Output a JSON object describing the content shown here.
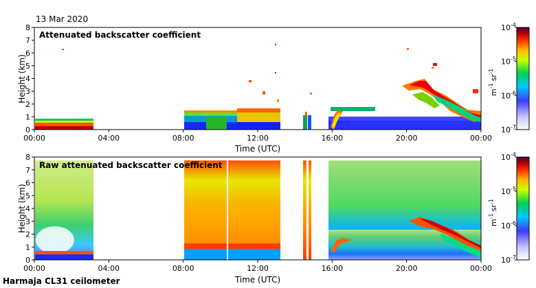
{
  "header": {
    "date": "13 Mar 2020",
    "instrument": "Harmaja CL31 ceilometer"
  },
  "chart_data": [
    {
      "type": "heatmap",
      "title": "Attenuated backscatter coefficient",
      "xlabel": "Time (UTC)",
      "ylabel": "Height (km)",
      "x_ticks": [
        "00:00",
        "04:00",
        "08:00",
        "12:00",
        "16:00",
        "20:00",
        "00:00"
      ],
      "y_ticks": [
        "0",
        "1",
        "2",
        "3",
        "4",
        "5",
        "6",
        "7",
        "8"
      ],
      "xlim_hours": [
        0,
        24
      ],
      "ylim_km": [
        0,
        8
      ],
      "data_segments_hours": [
        [
          0.0,
          3.2
        ],
        [
          8.1,
          13.2
        ],
        [
          14.4,
          14.7
        ],
        [
          14.8,
          15.05
        ],
        [
          15.95,
          24.0
        ]
      ],
      "features": [
        {
          "hours": [
            0.0,
            3.2
          ],
          "cloud_base_km": 0.5,
          "intensity": "high"
        },
        {
          "hours": [
            8.1,
            13.2
          ],
          "cloud_base_km": 0.9,
          "intensity": "high"
        },
        {
          "hours": [
            16.0,
            19.0
          ],
          "cloud_base_km": 1.5,
          "intensity": "medium"
        },
        {
          "hours": [
            20.0,
            24.0
          ],
          "cloud_base_km": 1.2,
          "note": "cloud layer descending from 3.5 km to 1.2 km"
        }
      ],
      "colorbar": {
        "scale": "log",
        "min": 1e-07,
        "max": 0.0001,
        "ticks": [
          {
            "base": "10",
            "exp": "-4"
          },
          {
            "base": "10",
            "exp": "-5"
          },
          {
            "base": "10",
            "exp": "-6"
          },
          {
            "base": "10",
            "exp": "-7"
          }
        ],
        "label": {
          "m": "m",
          "m_exp": "-1",
          "sr": "sr",
          "sr_exp": "-1"
        }
      }
    },
    {
      "type": "heatmap",
      "title": "Raw attenuated backscatter coefficient",
      "xlabel": "Time (UTC)",
      "ylabel": "Height (km)",
      "x_ticks": [
        "00:00",
        "04:00",
        "08:00",
        "12:00",
        "16:00",
        "20:00",
        "00:00"
      ],
      "y_ticks": [
        "0",
        "1",
        "2",
        "3",
        "4",
        "5",
        "6",
        "7",
        "8"
      ],
      "xlim_hours": [
        0,
        24
      ],
      "ylim_km": [
        0,
        8
      ],
      "data_segments_hours": [
        [
          0.0,
          3.2
        ],
        [
          8.1,
          13.2
        ],
        [
          14.4,
          14.7
        ],
        [
          14.8,
          15.05
        ],
        [
          15.95,
          24.0
        ]
      ],
      "features": [
        {
          "hours": [
            0.0,
            3.2
          ],
          "note": "noise dominated above 1 km"
        },
        {
          "hours": [
            8.1,
            13.2
          ],
          "note": "strong noise signal"
        },
        {
          "hours": [
            20.0,
            24.0
          ],
          "cloud_base_km": 1.2,
          "note": "cloud layer descending"
        }
      ],
      "colorbar": {
        "scale": "log",
        "min": 1e-07,
        "max": 0.0001,
        "ticks": [
          {
            "base": "10",
            "exp": "-4"
          },
          {
            "base": "10",
            "exp": "-5"
          },
          {
            "base": "10",
            "exp": "-6"
          },
          {
            "base": "10",
            "exp": "-7"
          }
        ],
        "label": {
          "m": "m",
          "m_exp": "-1",
          "sr": "sr",
          "sr_exp": "-1"
        }
      }
    }
  ]
}
